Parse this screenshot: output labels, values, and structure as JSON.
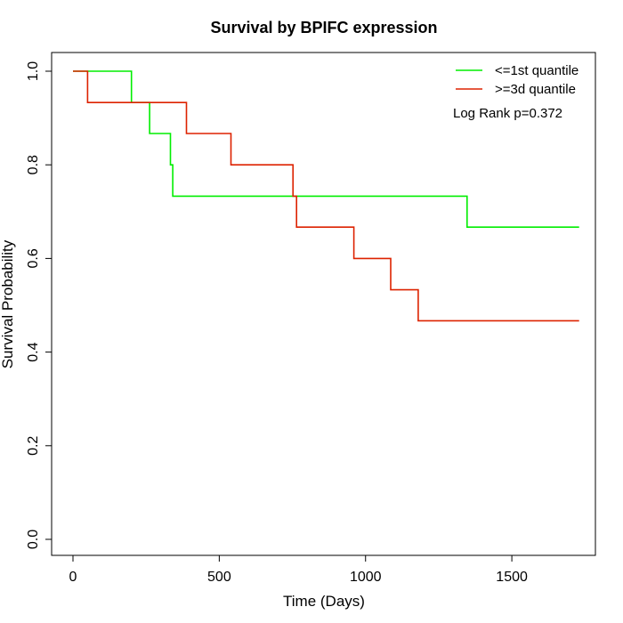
{
  "chart_data": {
    "type": "line",
    "title": "Survival by BPIFC expression",
    "xlabel": "Time (Days)",
    "ylabel": "Survival Probability",
    "xlim": [
      0,
      1780
    ],
    "ylim": [
      0,
      1.0
    ],
    "x_ticks": [
      0,
      500,
      1000,
      1500
    ],
    "x_tick_labels": [
      "0",
      "500",
      "1000",
      "1500"
    ],
    "y_ticks": [
      0,
      0.2,
      0.4,
      0.6,
      0.8,
      1.0
    ],
    "y_tick_labels": [
      "0.0",
      "0.2",
      "0.4",
      "0.6",
      "0.8",
      "1.0"
    ],
    "grid": false,
    "legend_position": "top-right",
    "annotation": "Log Rank p=0.372",
    "series": [
      {
        "name": "<=1st quantile",
        "color": "#00ee00",
        "step_points": [
          [
            0,
            1.0
          ],
          [
            200,
            1.0
          ],
          [
            200,
            0.933
          ],
          [
            262,
            0.933
          ],
          [
            262,
            0.867
          ],
          [
            333,
            0.867
          ],
          [
            333,
            0.8
          ],
          [
            341,
            0.8
          ],
          [
            341,
            0.733
          ],
          [
            1347,
            0.733
          ],
          [
            1347,
            0.667
          ],
          [
            1730,
            0.667
          ]
        ]
      },
      {
        "name": ">=3d quantile",
        "color": "#dd2200",
        "step_points": [
          [
            0,
            1.0
          ],
          [
            50,
            1.0
          ],
          [
            50,
            0.933
          ],
          [
            388,
            0.933
          ],
          [
            388,
            0.867
          ],
          [
            540,
            0.867
          ],
          [
            540,
            0.8
          ],
          [
            752,
            0.8
          ],
          [
            752,
            0.733
          ],
          [
            764,
            0.733
          ],
          [
            764,
            0.667
          ],
          [
            960,
            0.667
          ],
          [
            960,
            0.6
          ],
          [
            1086,
            0.6
          ],
          [
            1086,
            0.533
          ],
          [
            1180,
            0.533
          ],
          [
            1180,
            0.467
          ],
          [
            1730,
            0.467
          ]
        ]
      }
    ]
  }
}
